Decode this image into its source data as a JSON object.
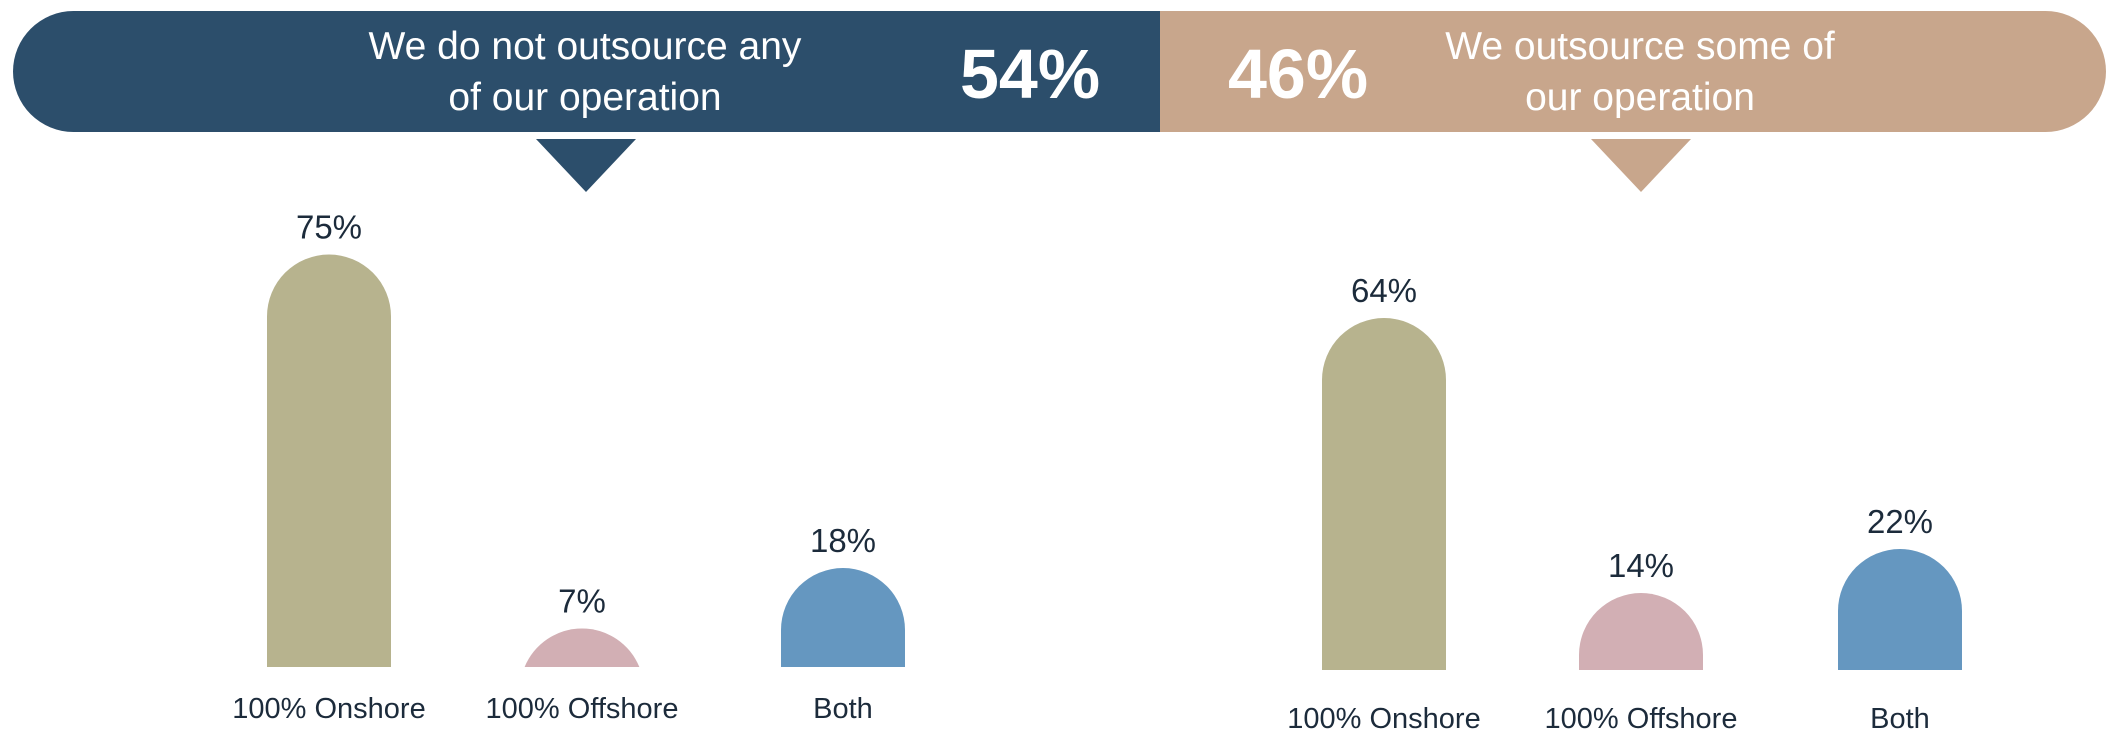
{
  "header": {
    "left": {
      "text_line1": "We do not outsource any",
      "text_line2": "of our operation",
      "percent": "54%",
      "color": "#2c4e6b"
    },
    "right": {
      "text_line1": "We outsource some of",
      "text_line2": "our operation",
      "percent": "46%",
      "color": "#c8a68c"
    }
  },
  "chart_data": [
    {
      "type": "bar",
      "categories": [
        "100% Onshore",
        "100% Offshore",
        "Both"
      ],
      "values": [
        75,
        7,
        18
      ],
      "value_labels": [
        "75%",
        "7%",
        "18%"
      ],
      "colors": [
        "#b7b38e",
        "#d2afb4",
        "#6597c0"
      ],
      "ylim": [
        0,
        100
      ]
    },
    {
      "type": "bar",
      "categories": [
        "100% Onshore",
        "100% Offshore",
        "Both"
      ],
      "values": [
        64,
        14,
        22
      ],
      "value_labels": [
        "64%",
        "14%",
        "22%"
      ],
      "colors": [
        "#b7b38e",
        "#d2afb4",
        "#6597c0"
      ],
      "ylim": [
        0,
        100
      ]
    }
  ]
}
